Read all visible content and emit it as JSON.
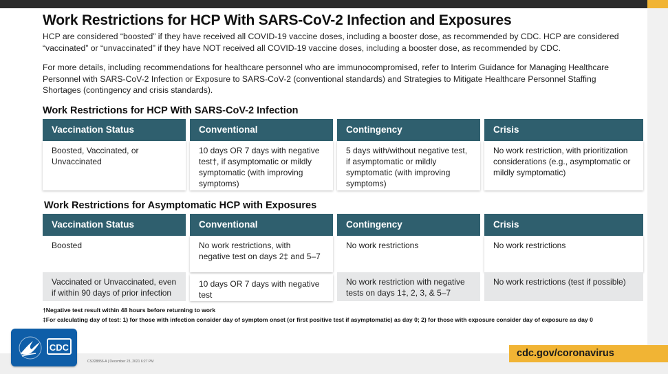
{
  "title": "Work Restrictions for HCP With SARS-CoV-2 Infection and Exposures",
  "intro": {
    "p1": "HCP are considered “boosted” if they have received all COVID-19 vaccine doses, including a booster dose, as recommended by CDC. HCP are considered “vaccinated” or “unvaccinated” if they have NOT received all COVID-19 vaccine doses, including a booster dose, as recommended by CDC.",
    "p2": "For more details, including recommendations for healthcare personnel who are immunocompromised, refer to Interim Guidance for Managing Healthcare Personnel with SARS-CoV-2 Infection or Exposure to SARS-CoV-2 (conventional standards) and Strategies to Mitigate Healthcare Personnel Staffing Shortages (contingency and crisis standards)."
  },
  "infection_table": {
    "title": "Work Restrictions for HCP With SARS-CoV-2 Infection",
    "headers": [
      "Vaccination Status",
      "Conventional",
      "Contingency",
      "Crisis"
    ],
    "row": [
      "Boosted, Vaccinated, or Unvaccinated",
      "10 days OR 7 days with negative test†, if asymptomatic or mildly symptomatic (with improving symptoms)",
      "5 days with/without negative test, if asymptomatic or mildly symptomatic (with improving  symptoms)",
      "No work restriction, with prioritization considerations (e.g., asymptomatic or mildly symptomatic)"
    ]
  },
  "exposure_table": {
    "title": "Work Restrictions for Asymptomatic HCP with Exposures",
    "headers": [
      "Vaccination Status",
      "Conventional",
      "Contingency",
      "Crisis"
    ],
    "rows": [
      [
        "Boosted",
        "No work restrictions, with negative test on days 2‡ and 5–7",
        "No work restrictions",
        "No work restrictions"
      ],
      [
        "Vaccinated or Unvaccinated, even if within 90 days of prior infection",
        "10 days OR 7 days with negative test",
        "No work restriction with negative tests on days 1‡, 2, 3, & 5–7",
        "No work restrictions (test if possible)"
      ]
    ]
  },
  "footnotes": [
    "†Negative test result within 48 hours before returning to work",
    "‡For calculating day of test: 1) for those with infection consider day of symptom onset (or first positive test if asymptomatic) as day 0; 2) for those with exposure consider day of exposure as day 0"
  ],
  "logo": {
    "text": "CDC"
  },
  "meta": "CS328856-A  |  December 23, 2021 6:27 PM",
  "footer_url": "cdc.gov/coronavirus",
  "colors": {
    "header": "#2f5f6e",
    "accent": "#f1b434",
    "logo": "#0f5ea8"
  }
}
